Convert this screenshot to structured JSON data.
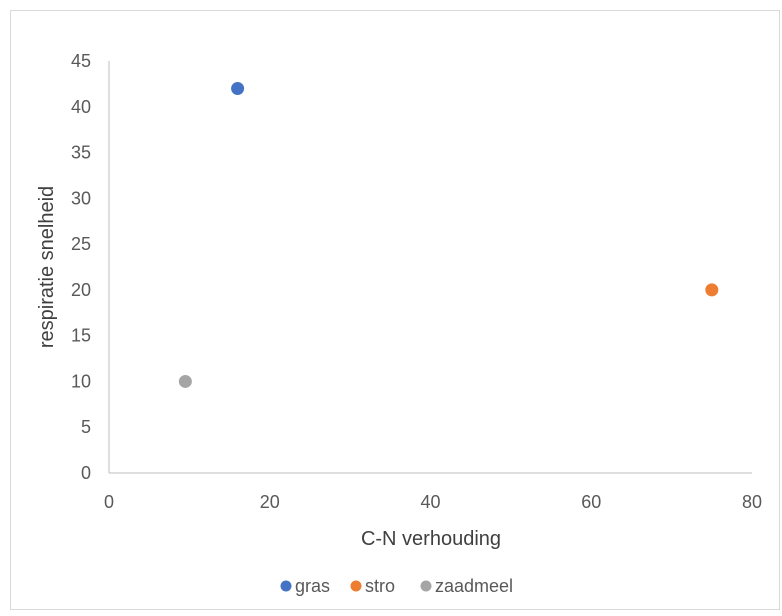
{
  "chart_data": {
    "type": "scatter",
    "title": "",
    "xlabel": "C-N verhouding",
    "ylabel": "respiratie snelheid",
    "xlim": [
      0,
      80
    ],
    "ylim": [
      0,
      45
    ],
    "x_ticks": [
      "0",
      "20",
      "40",
      "60",
      "80"
    ],
    "y_ticks": [
      "0",
      "5",
      "10",
      "15",
      "20",
      "25",
      "30",
      "35",
      "40",
      "45"
    ],
    "grid": false,
    "legend_position": "bottom",
    "series": [
      {
        "name": "gras",
        "color": "#4472c4",
        "points": [
          {
            "x": 16,
            "y": 42
          }
        ]
      },
      {
        "name": "stro",
        "color": "#ed7d31",
        "points": [
          {
            "x": 75,
            "y": 20
          }
        ]
      },
      {
        "name": "zaadmeel",
        "color": "#a5a5a5",
        "points": [
          {
            "x": 9.5,
            "y": 10
          }
        ]
      }
    ]
  }
}
